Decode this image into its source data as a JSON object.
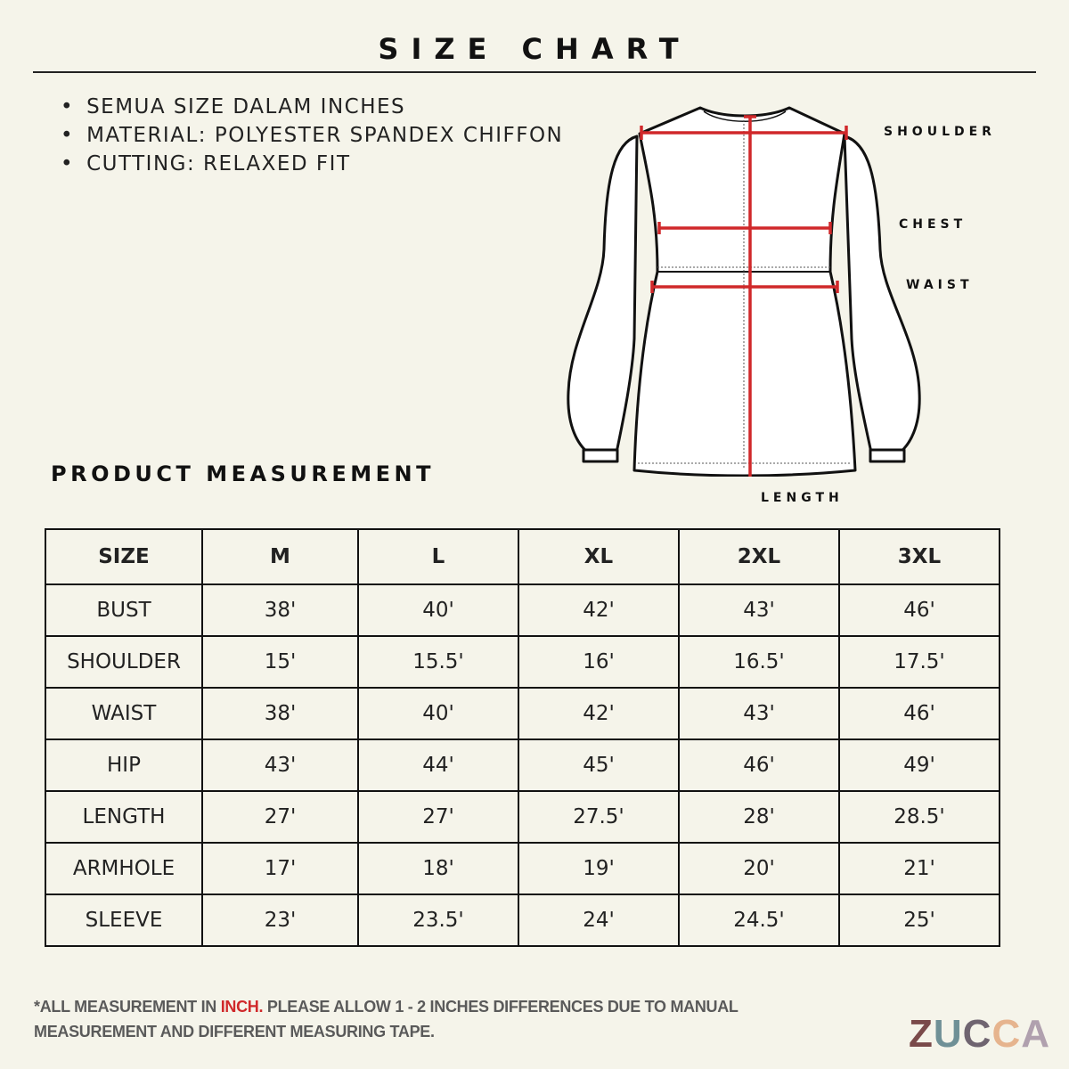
{
  "title": "SIZE CHART",
  "bullets": [
    "SEMUA SIZE DALAM INCHES",
    "MATERIAL: POLYESTER SPANDEX CHIFFON",
    "CUTTING: RELAXED FIT"
  ],
  "diagram_labels": {
    "shoulder": "SHOULDER",
    "chest": "CHEST",
    "waist": "WAIST",
    "length": "LENGTH"
  },
  "section_title": "PRODUCT MEASUREMENT",
  "table": {
    "headers": [
      "SIZE",
      "M",
      "L",
      "XL",
      "2XL",
      "3XL"
    ],
    "rows": [
      [
        "BUST",
        "38'",
        "40'",
        "42'",
        "43'",
        "46'"
      ],
      [
        "SHOULDER",
        "15'",
        "15.5'",
        "16'",
        "16.5'",
        "17.5'"
      ],
      [
        "WAIST",
        "38'",
        "40'",
        "42'",
        "43'",
        "46'"
      ],
      [
        "HIP",
        "43'",
        "44'",
        "45'",
        "46'",
        "49'"
      ],
      [
        "LENGTH",
        "27'",
        "27'",
        "27.5'",
        "28'",
        "28.5'"
      ],
      [
        "ARMHOLE",
        "17'",
        "18'",
        "19'",
        "20'",
        "21'"
      ],
      [
        "SLEEVE",
        "23'",
        "23.5'",
        "24'",
        "24.5'",
        "25'"
      ]
    ]
  },
  "footer": {
    "part1": "*ALL MEASUREMENT IN ",
    "highlight": "INCH.",
    "part2": " PLEASE ALLOW 1 - 2 INCHES DIFFERENCES DUE TO MANUAL",
    "line2": "MEASUREMENT AND DIFFERENT MEASURING TAPE."
  },
  "logo": {
    "letters": [
      "Z",
      "U",
      "C",
      "C",
      "A"
    ],
    "colors": [
      "#7a4a4a",
      "#6f9096",
      "#6f6470",
      "#e6b48e",
      "#b0a0ae"
    ]
  },
  "colors": {
    "background": "#f5f4ea",
    "measure_line": "#d0282a",
    "highlight": "#d0282a"
  }
}
